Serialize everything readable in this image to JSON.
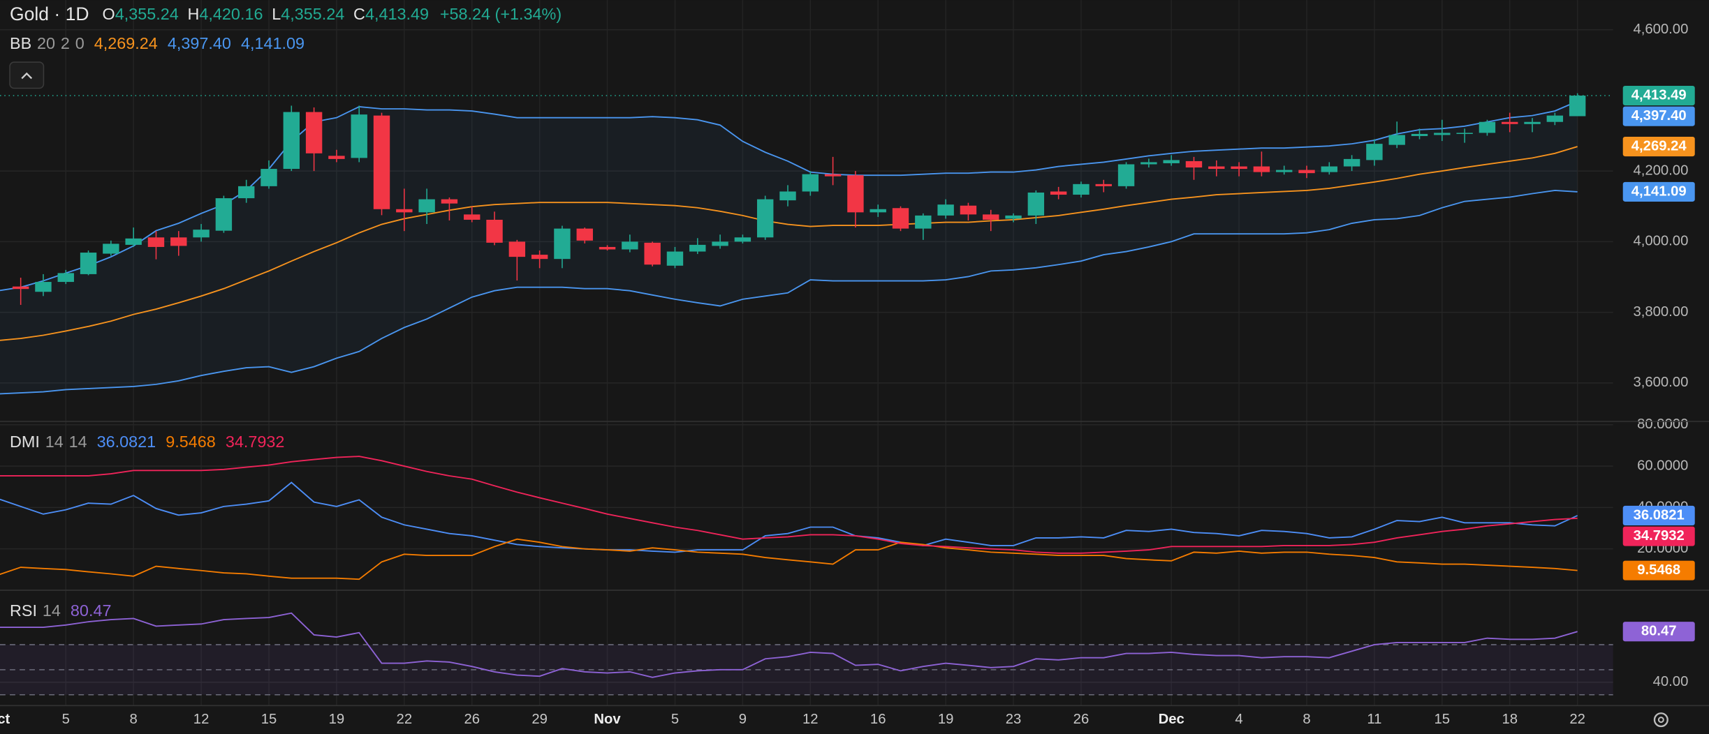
{
  "chart_data": [
    {
      "type": "candlestick",
      "title": "Gold · 1D",
      "ohlc": [
        {
          "key": "O",
          "label": "4,355.24"
        },
        {
          "key": "H",
          "label": "4,420.16"
        },
        {
          "key": "L",
          "label": "4,355.24"
        },
        {
          "key": "C",
          "label": "4,413.49"
        }
      ],
      "change": "+58.24 (+1.34%)",
      "categories": [
        "Oct",
        null,
        null,
        "5",
        null,
        null,
        "8",
        null,
        null,
        "12",
        null,
        null,
        "15",
        null,
        null,
        "19",
        null,
        null,
        "22",
        null,
        null,
        "26",
        null,
        null,
        "29",
        null,
        null,
        "Nov",
        null,
        null,
        "5",
        null,
        null,
        "9",
        null,
        null,
        "12",
        null,
        null,
        "16",
        null,
        null,
        "19",
        null,
        null,
        "23",
        null,
        null,
        "26",
        null,
        null,
        null,
        "Dec",
        null,
        null,
        "4",
        null,
        null,
        "8",
        null,
        null,
        "11",
        null,
        null,
        "15",
        null,
        null,
        "18",
        null,
        null,
        "22"
      ],
      "open": [
        null,
        3873,
        3858,
        3886,
        3908,
        3966,
        3991,
        4012,
        4012,
        4012,
        4031,
        4123,
        4157,
        4206,
        4367,
        4243,
        4237,
        4357,
        4092,
        4083,
        4120,
        4077,
        4062,
        4000,
        3963,
        3951,
        4037,
        3985,
        3978,
        3997,
        3932,
        3972,
        3988,
        4000,
        4012,
        4117,
        4142,
        4191,
        4188,
        4083,
        4095,
        4037,
        4074,
        4102,
        4077,
        4065,
        4074,
        4142,
        4133,
        4163,
        4157,
        4219,
        4222,
        4228,
        4213,
        4213,
        4213,
        4197,
        4203,
        4197,
        4213,
        4231,
        4274,
        4299,
        4302,
        4305,
        4308,
        4339,
        4333,
        4339,
        4355.24
      ],
      "high": [
        null,
        3898,
        3908,
        3920,
        3975,
        4003,
        4040,
        4030,
        4030,
        4050,
        4130,
        4175,
        4230,
        4385,
        4380,
        4260,
        4385,
        4365,
        4150,
        4150,
        4125,
        4100,
        4085,
        4005,
        3975,
        4045,
        4040,
        3990,
        4020,
        4000,
        3985,
        4010,
        4020,
        4020,
        4130,
        4160,
        4200,
        4240,
        4200,
        4105,
        4100,
        4080,
        4120,
        4110,
        4090,
        4080,
        4145,
        4155,
        4170,
        4175,
        4225,
        4235,
        4245,
        4240,
        4230,
        4225,
        4255,
        4215,
        4215,
        4225,
        4245,
        4290,
        4340,
        4320,
        4345,
        4320,
        4345,
        4365,
        4350,
        4365,
        4420.16
      ],
      "low": [
        null,
        3821,
        3846,
        3880,
        3905,
        3960,
        3985,
        3950,
        3960,
        4000,
        4025,
        4110,
        4150,
        4200,
        4200,
        4225,
        4225,
        4075,
        4030,
        4050,
        4060,
        4055,
        3990,
        3890,
        3925,
        3925,
        3995,
        3975,
        3970,
        3930,
        3925,
        3965,
        3980,
        3995,
        4005,
        4100,
        4130,
        4160,
        4040,
        4070,
        4030,
        4005,
        4065,
        4060,
        4030,
        4055,
        4050,
        4120,
        4125,
        4140,
        4150,
        4210,
        4215,
        4175,
        4185,
        4185,
        4185,
        4190,
        4180,
        4190,
        4200,
        4215,
        4265,
        4290,
        4285,
        4280,
        4300,
        4310,
        4310,
        4330,
        4355.24
      ],
      "close": [
        null,
        3866,
        3886,
        3911,
        3969,
        3994,
        4009,
        3985,
        3988,
        4034,
        4123,
        4157,
        4206,
        4367,
        4250,
        4234,
        4360,
        4092,
        4083,
        4120,
        4108,
        4062,
        3997,
        3957,
        3951,
        4037,
        4003,
        3978,
        4000,
        3935,
        3972,
        3991,
        4000,
        4012,
        4120,
        4142,
        4191,
        4185,
        4083,
        4092,
        4037,
        4074,
        4105,
        4077,
        4062,
        4074,
        4139,
        4133,
        4163,
        4157,
        4219,
        4225,
        4231,
        4210,
        4206,
        4206,
        4197,
        4203,
        4194,
        4213,
        4234,
        4277,
        4302,
        4305,
        4308,
        4308,
        4339,
        4333,
        4339,
        4357,
        4413.49
      ],
      "up_color": "#22ab94",
      "down_color": "#f23645",
      "indicator": {
        "title": "BB",
        "params": [
          20,
          2,
          0
        ],
        "band_fill": "rgba(74,150,240,0.06)"
      },
      "series": [
        {
          "color": "#f7931e",
          "label": "4,269.24",
          "values": [
            3720,
            3726,
            3735,
            3747,
            3760,
            3775,
            3794,
            3809,
            3827,
            3846,
            3867,
            3892,
            3917,
            3945,
            3972,
            3997,
            4025,
            4049,
            4065,
            4077,
            4089,
            4099,
            4105,
            4108,
            4111,
            4111,
            4111,
            4111,
            4108,
            4105,
            4102,
            4096,
            4086,
            4074,
            4059,
            4049,
            4043,
            4046,
            4046,
            4046,
            4049,
            4052,
            4055,
            4055,
            4059,
            4062,
            4068,
            4074,
            4083,
            4092,
            4102,
            4111,
            4120,
            4126,
            4133,
            4136,
            4139,
            4142,
            4145,
            4151,
            4160,
            4169,
            4179,
            4191,
            4200,
            4210,
            4219,
            4228,
            4237,
            4250,
            4269.24
          ]
        },
        {
          "color": "#4a96f0",
          "label": "4,397.40",
          "values": [
            3861,
            3871,
            3889,
            3911,
            3932,
            3957,
            3988,
            4031,
            4052,
            4080,
            4105,
            4145,
            4206,
            4284,
            4339,
            4351,
            4382,
            4376,
            4376,
            4373,
            4373,
            4370,
            4361,
            4351,
            4351,
            4351,
            4351,
            4351,
            4351,
            4354,
            4351,
            4345,
            4330,
            4284,
            4253,
            4228,
            4197,
            4191,
            4188,
            4188,
            4188,
            4191,
            4194,
            4194,
            4197,
            4197,
            4203,
            4213,
            4219,
            4225,
            4234,
            4243,
            4250,
            4256,
            4259,
            4262,
            4265,
            4265,
            4268,
            4271,
            4277,
            4287,
            4305,
            4317,
            4320,
            4327,
            4339,
            4351,
            4357,
            4370,
            4397.4
          ]
        },
        {
          "color": "#4a96f0",
          "label": "4,141.09",
          "values": [
            3569,
            3572,
            3575,
            3581,
            3584,
            3587,
            3590,
            3596,
            3606,
            3621,
            3633,
            3643,
            3646,
            3630,
            3646,
            3670,
            3689,
            3726,
            3757,
            3781,
            3812,
            3843,
            3861,
            3871,
            3871,
            3871,
            3867,
            3867,
            3861,
            3849,
            3837,
            3827,
            3818,
            3837,
            3846,
            3855,
            3892,
            3889,
            3889,
            3889,
            3889,
            3889,
            3892,
            3901,
            3917,
            3920,
            3926,
            3935,
            3945,
            3963,
            3972,
            3985,
            4000,
            4022,
            4022,
            4022,
            4022,
            4022,
            4025,
            4034,
            4052,
            4062,
            4065,
            4074,
            4096,
            4114,
            4120,
            4126,
            4136,
            4145,
            4141.09
          ]
        }
      ],
      "ylim": [
        3491,
        4684
      ],
      "yticks": [
        {
          "value": 4600,
          "label": "4,600.00"
        },
        {
          "value": 4200,
          "label": "4,200.00"
        },
        {
          "value": 4000,
          "label": "4,000.00"
        },
        {
          "value": 3800,
          "label": "3,800.00"
        },
        {
          "value": 3600,
          "label": "3,600.00"
        }
      ],
      "grid": true
    },
    {
      "type": "line",
      "title": "DMI",
      "params": [
        14,
        14
      ],
      "series": [
        {
          "color": "#4d8ef7",
          "label": "36.0821",
          "values": [
            44.2,
            40.5,
            36.8,
            38.9,
            42.1,
            41.6,
            45.8,
            39.5,
            36.3,
            37.4,
            40.5,
            41.6,
            43.2,
            52.1,
            42.6,
            40.5,
            43.7,
            35.3,
            31.6,
            29.5,
            27.4,
            26.3,
            24.2,
            22.1,
            21.1,
            20.5,
            20.0,
            19.5,
            19.5,
            18.9,
            18.4,
            19.5,
            19.5,
            19.5,
            26.3,
            27.4,
            30.5,
            30.5,
            26.3,
            25.3,
            23.2,
            21.6,
            24.7,
            23.2,
            21.6,
            21.6,
            25.3,
            25.3,
            25.8,
            25.3,
            28.9,
            28.4,
            29.5,
            27.9,
            27.4,
            26.3,
            28.9,
            28.4,
            27.4,
            25.3,
            25.8,
            29.5,
            33.7,
            33.2,
            35.3,
            32.6,
            32.6,
            32.6,
            31.6,
            31.1,
            36.0821
          ]
        },
        {
          "color": "#f57c00",
          "label": "9.5468",
          "values": [
            7.4,
            11.1,
            10.5,
            10.0,
            8.9,
            7.9,
            6.8,
            11.6,
            10.5,
            9.5,
            8.4,
            7.9,
            6.8,
            5.8,
            5.8,
            5.8,
            5.3,
            13.7,
            17.4,
            16.8,
            16.8,
            16.8,
            21.1,
            24.7,
            23.2,
            21.1,
            20.0,
            19.5,
            18.9,
            20.5,
            19.5,
            18.4,
            17.9,
            17.4,
            15.8,
            14.7,
            13.7,
            12.6,
            19.5,
            19.5,
            23.2,
            22.1,
            20.5,
            19.5,
            18.4,
            17.9,
            17.4,
            16.8,
            16.8,
            16.8,
            15.3,
            14.7,
            14.2,
            18.4,
            17.9,
            18.9,
            17.9,
            18.4,
            18.4,
            17.4,
            16.8,
            15.8,
            13.7,
            13.2,
            12.6,
            12.6,
            12.1,
            11.6,
            11.1,
            10.5,
            9.5468
          ]
        },
        {
          "color": "#f0245a",
          "label": "34.7932",
          "values": [
            55.3,
            55.3,
            55.3,
            55.3,
            55.3,
            56.3,
            57.9,
            57.9,
            57.9,
            57.9,
            58.4,
            59.5,
            60.5,
            62.1,
            63.2,
            64.2,
            64.7,
            62.6,
            60.0,
            57.4,
            55.3,
            53.7,
            50.5,
            47.4,
            44.7,
            42.1,
            39.5,
            36.8,
            34.7,
            32.6,
            30.5,
            28.9,
            26.8,
            24.7,
            25.3,
            25.8,
            26.8,
            26.8,
            26.3,
            24.7,
            22.6,
            21.6,
            21.1,
            20.5,
            20.0,
            19.5,
            18.4,
            17.9,
            17.9,
            18.4,
            18.9,
            19.5,
            21.1,
            21.1,
            21.1,
            21.1,
            21.1,
            21.6,
            21.6,
            21.6,
            22.1,
            23.2,
            25.3,
            26.8,
            28.4,
            29.5,
            31.1,
            32.1,
            33.2,
            34.2,
            34.7932
          ]
        }
      ],
      "ylim": [
        0,
        81.6
      ],
      "yticks": [
        {
          "value": 80,
          "label": "80.0000"
        },
        {
          "value": 60,
          "label": "60.0000"
        },
        {
          "value": 40,
          "label": "40.0000"
        },
        {
          "value": 20,
          "label": "20.0000"
        }
      ],
      "grid": true
    },
    {
      "type": "line",
      "title": "RSI",
      "params": [
        14
      ],
      "series": [
        {
          "color": "#8e63d6",
          "label": "80.47",
          "values": [
            83.9,
            83.9,
            83.9,
            85.7,
            88.3,
            90.0,
            90.9,
            84.8,
            85.7,
            86.5,
            90.0,
            90.9,
            91.7,
            95.2,
            77.8,
            76.1,
            79.6,
            55.2,
            55.2,
            57.0,
            56.1,
            52.6,
            48.3,
            45.7,
            44.8,
            50.9,
            48.3,
            47.4,
            48.3,
            43.9,
            47.4,
            49.1,
            50.0,
            50.0,
            58.7,
            60.4,
            63.9,
            63.0,
            53.5,
            54.3,
            49.1,
            52.6,
            55.2,
            53.5,
            51.7,
            52.6,
            58.7,
            57.8,
            59.6,
            59.6,
            63.0,
            63.0,
            63.9,
            62.2,
            61.3,
            61.3,
            59.6,
            60.4,
            60.4,
            59.6,
            64.8,
            70.0,
            71.7,
            71.7,
            71.7,
            71.7,
            75.2,
            74.3,
            74.3,
            75.2,
            80.47
          ]
        }
      ],
      "levels": [
        70,
        50,
        30
      ],
      "band_fill": "rgba(126,87,194,0.10)",
      "ylim": [
        21.3,
        113.5
      ],
      "yticks": [
        {
          "value": 40,
          "label": "40.00"
        }
      ],
      "grid": true
    }
  ]
}
